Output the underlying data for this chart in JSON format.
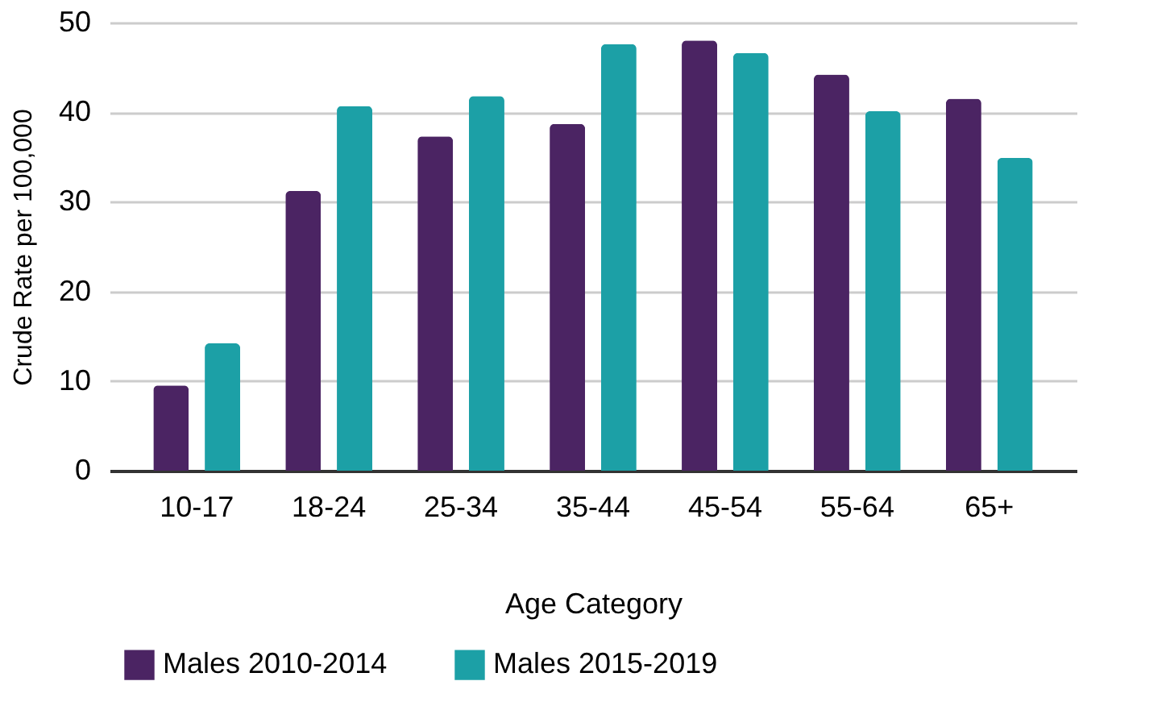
{
  "chart_data": {
    "type": "bar",
    "xlabel": "Age Category",
    "ylabel": "Crude Rate per 100,000",
    "categories": [
      "10-17",
      "18-24",
      "25-34",
      "35-44",
      "45-54",
      "55-64",
      "65+"
    ],
    "series": [
      {
        "name": "Males 2010-2014",
        "color": "#4b2463",
        "values": [
          9.5,
          31.2,
          37.3,
          38.7,
          48.0,
          44.2,
          41.5
        ]
      },
      {
        "name": "Males 2015-2019",
        "color": "#1ca0a6",
        "values": [
          14.2,
          40.7,
          41.8,
          47.6,
          46.6,
          40.1,
          34.9
        ]
      }
    ],
    "ylim": [
      0,
      50
    ],
    "yticks": [
      0,
      10,
      20,
      30,
      40,
      50
    ],
    "grid": "y",
    "legend": "bottom"
  }
}
